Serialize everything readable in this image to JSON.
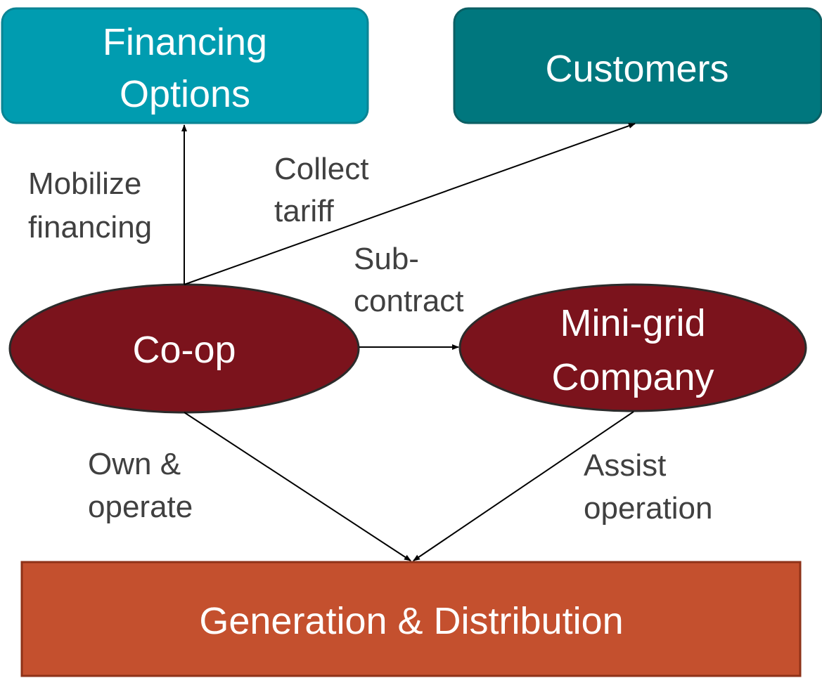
{
  "nodes": {
    "financing": {
      "lines": [
        "Financing",
        "Options"
      ],
      "color": "#009CB0",
      "border": "#0A8494"
    },
    "customers": {
      "lines": [
        "Customers"
      ],
      "color": "#00777E",
      "border": "#0B5F64"
    },
    "coop": {
      "lines": [
        "Co-op"
      ],
      "color": "#7B131C",
      "border": "#2B2B2B"
    },
    "minigrid": {
      "lines": [
        "Mini-grid",
        "Company"
      ],
      "color": "#7B131C",
      "border": "#2B2B2B"
    },
    "generation": {
      "lines": [
        "Generation & Distribution"
      ],
      "color": "#C4502E",
      "border": "#8E3218"
    }
  },
  "edges": {
    "mobilize": {
      "lines": [
        "Mobilize",
        "financing"
      ]
    },
    "collect": {
      "lines": [
        "Collect",
        "tariff"
      ]
    },
    "subcontract": {
      "lines": [
        "Sub-",
        "contract"
      ]
    },
    "own": {
      "lines": [
        "Own &",
        "operate"
      ]
    },
    "assist": {
      "lines": [
        "Assist",
        "operation"
      ]
    }
  },
  "colors": {
    "edge_line": "#000000",
    "edge_text": "#404040"
  }
}
